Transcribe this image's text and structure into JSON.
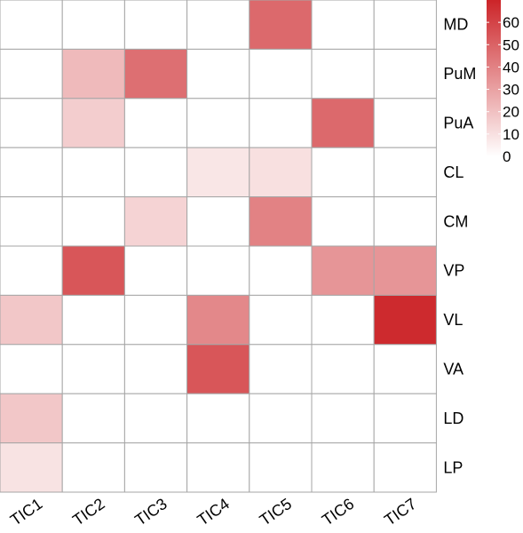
{
  "chart_data": {
    "type": "heatmap",
    "columns": [
      "TIC1",
      "TIC2",
      "TIC3",
      "TIC4",
      "TIC5",
      "TIC6",
      "TIC7"
    ],
    "rows": [
      "MD",
      "PuM",
      "PuA",
      "CL",
      "CM",
      "VP",
      "VL",
      "VA",
      "LD",
      "LP"
    ],
    "values": [
      [
        0,
        0,
        0,
        0,
        48,
        0,
        0
      ],
      [
        0,
        22,
        46,
        0,
        0,
        0,
        0
      ],
      [
        0,
        16,
        0,
        0,
        0,
        48,
        0
      ],
      [
        0,
        0,
        0,
        8,
        10,
        0,
        0
      ],
      [
        0,
        0,
        14,
        0,
        40,
        0,
        0
      ],
      [
        0,
        54,
        0,
        0,
        0,
        34,
        34
      ],
      [
        18,
        0,
        0,
        38,
        0,
        0,
        68
      ],
      [
        0,
        0,
        0,
        54,
        0,
        0,
        0
      ],
      [
        18,
        0,
        0,
        0,
        0,
        0,
        0
      ],
      [
        9,
        0,
        0,
        0,
        0,
        0,
        0
      ]
    ],
    "colorscale": {
      "min": 0,
      "max": 70,
      "low": "#ffffff",
      "high": "#cc2428"
    },
    "legend": {
      "ticks": [
        {
          "value": 0,
          "label": "0"
        },
        {
          "value": 10,
          "label": "10"
        },
        {
          "value": 20,
          "label": "20"
        },
        {
          "value": 30,
          "label": "30"
        },
        {
          "value": 40,
          "label": "40"
        },
        {
          "value": 50,
          "label": "50"
        },
        {
          "value": 60,
          "label": "60"
        }
      ],
      "placement": "top-right"
    },
    "grid": true,
    "grid_color": "#a6a6a6"
  }
}
